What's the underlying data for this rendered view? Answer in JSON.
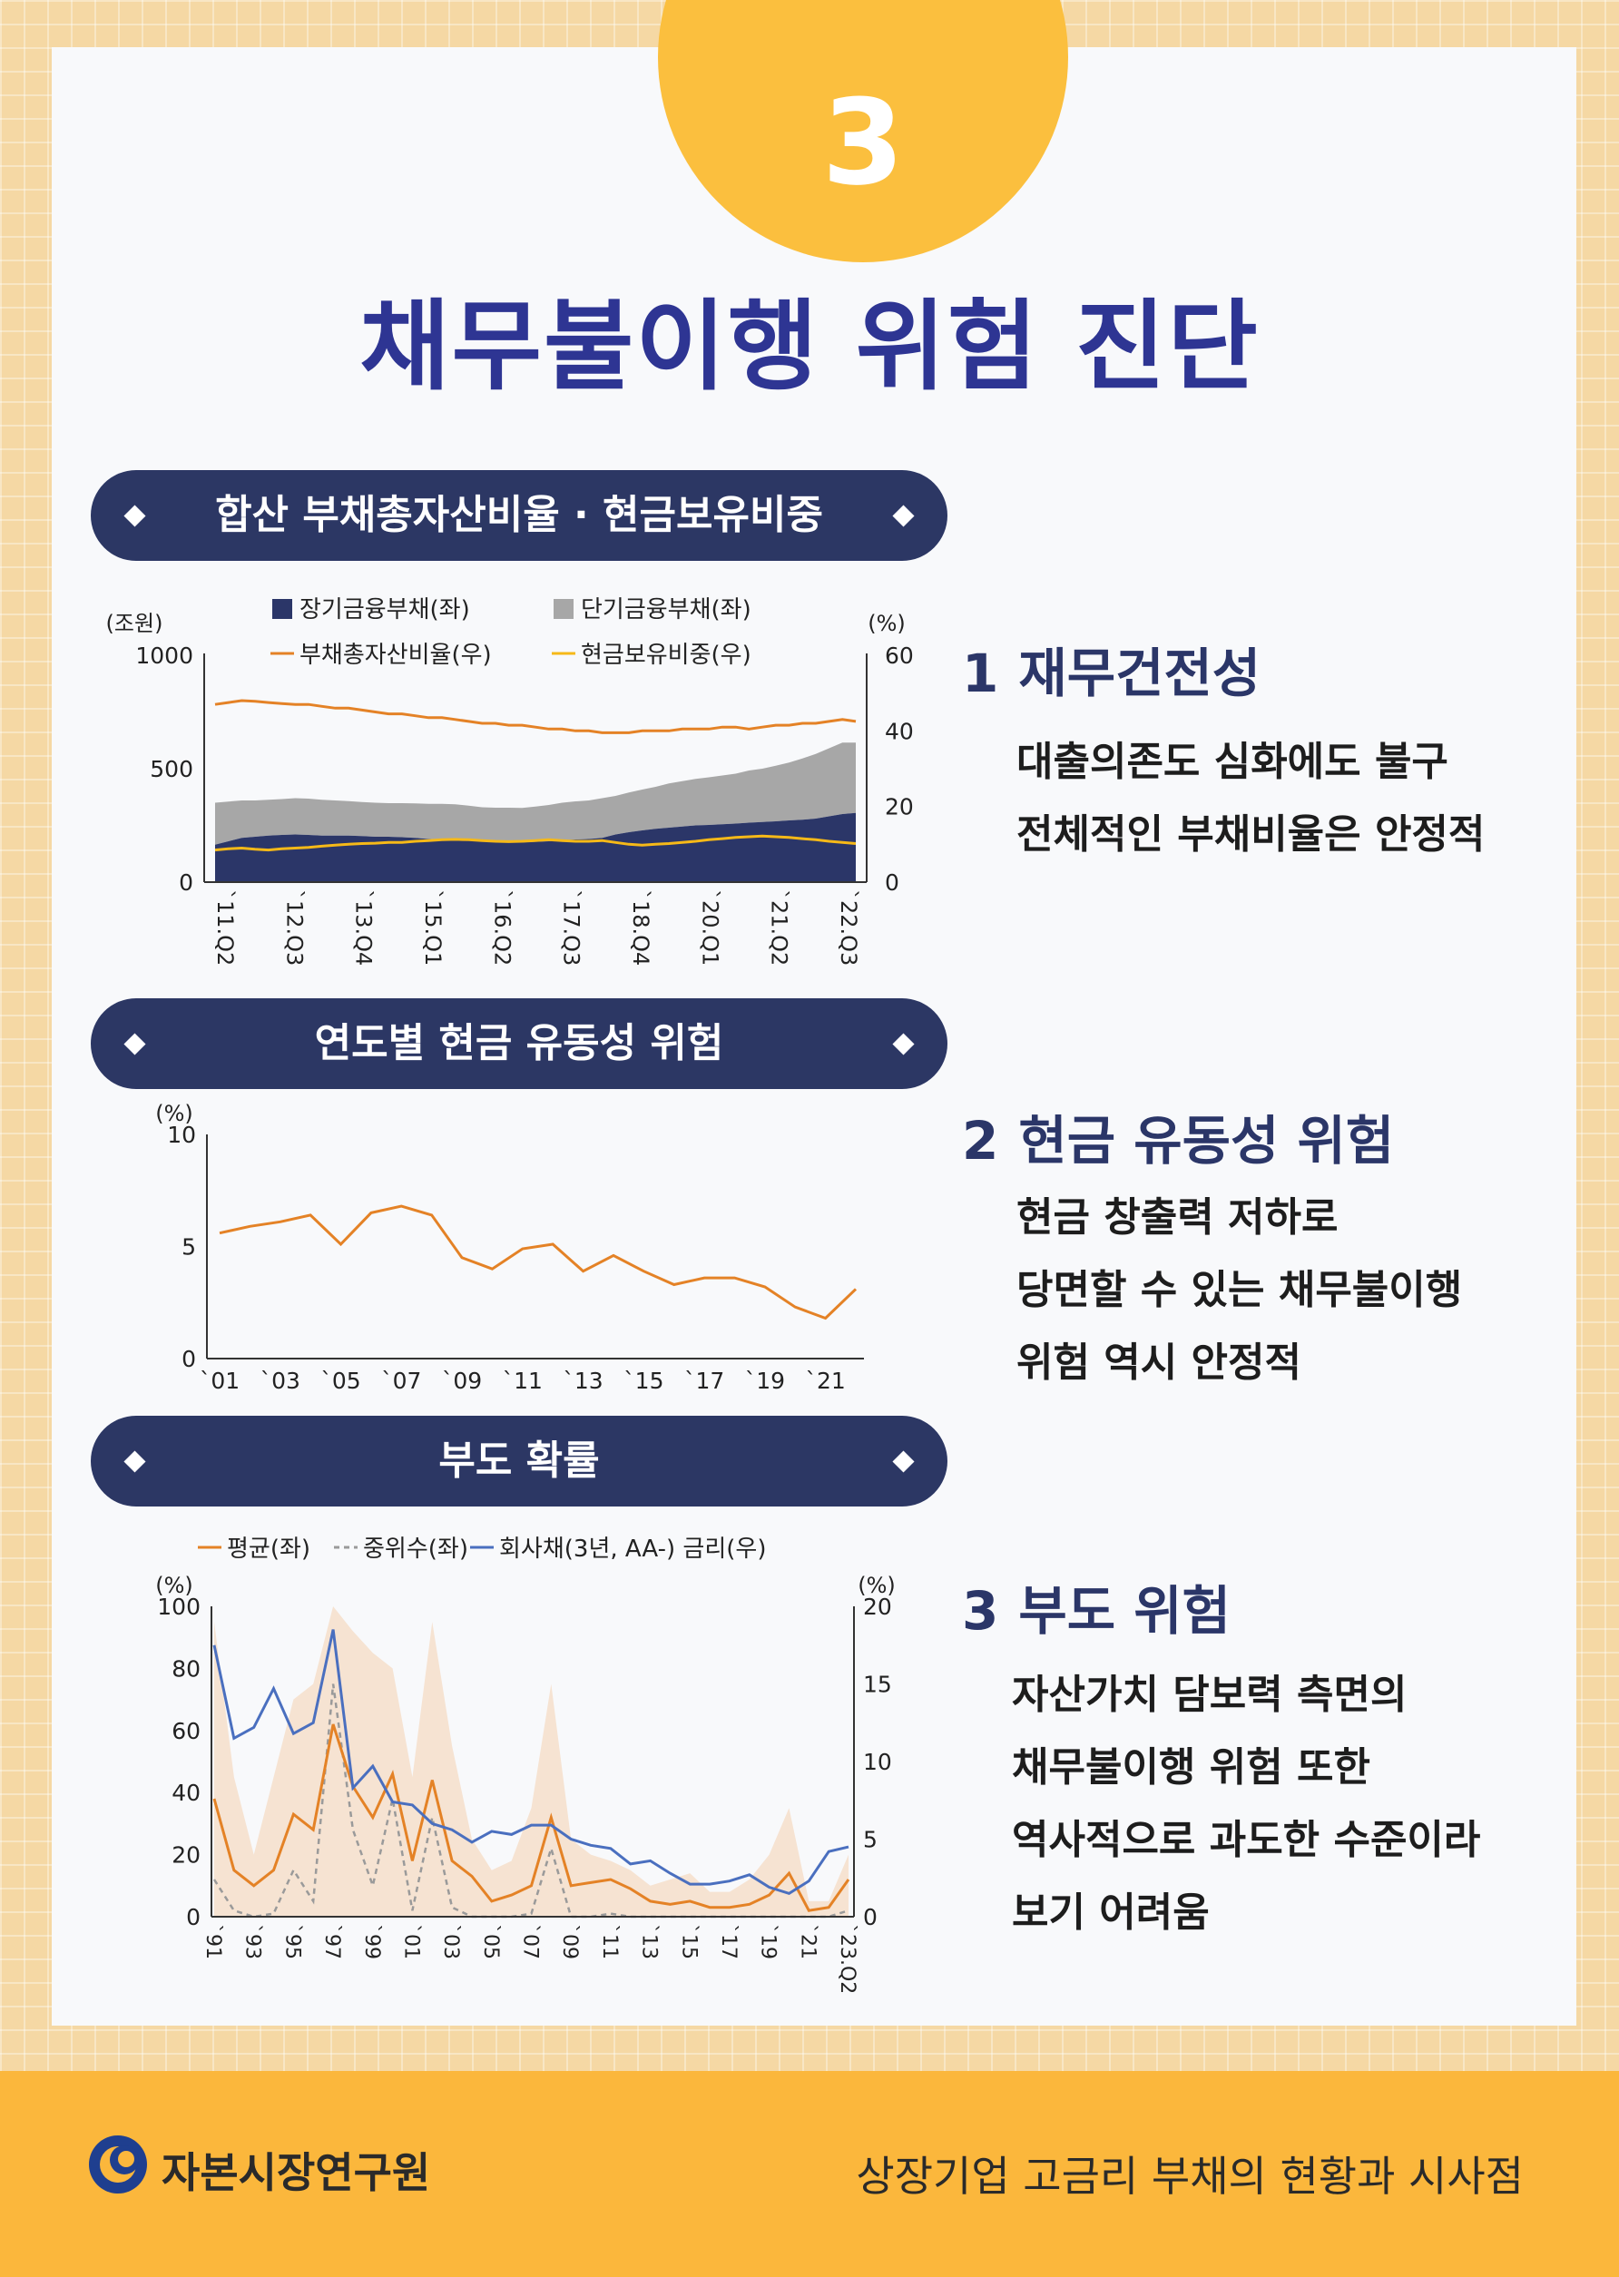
{
  "header": {
    "number": "3",
    "title": "채무불이행 위험 진단"
  },
  "pills": {
    "p1": "합산 부채총자산비율 · 현금보유비중",
    "p2": "연도별 현금 유동성 위험",
    "p3": "부도 확률"
  },
  "sections": [
    {
      "num": "1",
      "title": "재무건전성",
      "lines": [
        "대출의존도 심화에도 불구",
        "전체적인 부채비율은 안정적"
      ]
    },
    {
      "num": "2",
      "title": "현금 유동성 위험",
      "lines": [
        "현금 창출력 저하로",
        "당면할 수 있는 채무불이행",
        "위험 역시 안정적"
      ]
    },
    {
      "num": "3",
      "title": "부도 위험",
      "lines": [
        "자산가치 담보력 측면의",
        "채무불이행 위험 또한",
        "역사적으로 과도한 수준이라",
        "보기 어려움"
      ]
    }
  ],
  "colors": {
    "navy": "#2b3668",
    "gray": "#a7a7a7",
    "orange": "#e48226",
    "yellow": "#f6b918",
    "blue": "#4a6fbf",
    "dash": "#9a9a9a",
    "band": "#f6e3d2"
  },
  "chart_data": [
    {
      "type": "area",
      "title": "합산 부채총자산비율 · 현금보유비중",
      "y_left_unit": "(조원)",
      "y_right_unit": "(%)",
      "y_left_ticks": [
        "1000",
        "500",
        "0"
      ],
      "y_right_ticks": [
        "60",
        "40",
        "20",
        "0"
      ],
      "ylim_left": [
        0,
        1000
      ],
      "ylim_right": [
        0,
        60
      ],
      "x_ticks": [
        "`11.Q2",
        "`12.Q3",
        "`13.Q4",
        "`15.Q1",
        "`16.Q2",
        "`17.Q3",
        "`18.Q4",
        "`20.Q1",
        "`21.Q2",
        "`22.Q3"
      ],
      "legend": [
        "장기금융부채(좌)",
        "단기금융부채(좌)",
        "부채총자산비율(우)",
        "현금보유비중(우)"
      ],
      "series": [
        {
          "name": "장기금융부채(좌)",
          "axis": "left",
          "values": [
            165,
            180,
            195,
            200,
            205,
            208,
            210,
            208,
            205,
            205,
            205,
            203,
            200,
            200,
            198,
            195,
            190,
            190,
            188,
            185,
            180,
            180,
            178,
            175,
            178,
            180,
            185,
            188,
            190,
            195,
            210,
            220,
            228,
            235,
            240,
            245,
            250,
            252,
            255,
            258,
            262,
            265,
            268,
            272,
            275,
            280,
            290,
            300,
            305
          ]
        },
        {
          "name": "단기금융부채(좌)",
          "axis": "left",
          "values": [
            185,
            175,
            165,
            160,
            158,
            158,
            160,
            160,
            158,
            155,
            152,
            150,
            150,
            148,
            150,
            152,
            155,
            155,
            155,
            152,
            150,
            148,
            150,
            152,
            155,
            160,
            165,
            168,
            170,
            175,
            170,
            175,
            180,
            185,
            195,
            200,
            205,
            210,
            215,
            220,
            230,
            235,
            245,
            255,
            270,
            285,
            300,
            315,
            310
          ]
        },
        {
          "name": "부채총자산비율(우)",
          "axis": "right",
          "values": [
            47,
            47.5,
            48,
            47.8,
            47.5,
            47.2,
            47,
            47,
            46.5,
            46,
            46,
            45.5,
            45,
            44.5,
            44.5,
            44,
            43.5,
            43.5,
            43,
            42.5,
            42,
            42,
            41.5,
            41.5,
            41,
            40.5,
            40.5,
            40,
            40,
            39.5,
            39.5,
            39.5,
            40,
            40,
            40,
            40.5,
            40.5,
            40.5,
            41,
            41,
            40.5,
            41,
            41.5,
            41.5,
            42,
            42,
            42.5,
            43,
            42.5
          ]
        },
        {
          "name": "현금보유비중(우)",
          "axis": "right",
          "values": [
            8.5,
            8.8,
            9,
            8.7,
            8.5,
            8.8,
            9,
            9.2,
            9.5,
            9.8,
            10,
            10.2,
            10.3,
            10.5,
            10.5,
            10.8,
            11,
            11.2,
            11.3,
            11.2,
            11,
            10.8,
            10.7,
            10.8,
            11,
            11.2,
            11,
            10.8,
            10.8,
            11,
            10.5,
            10,
            9.8,
            10,
            10.2,
            10.5,
            10.8,
            11.2,
            11.5,
            11.8,
            12,
            12.2,
            12,
            11.8,
            11.5,
            11.2,
            10.8,
            10.5,
            10.2
          ]
        }
      ]
    },
    {
      "type": "line",
      "title": "연도별 현금 유동성 위험",
      "y_unit": "(%)",
      "y_ticks": [
        "10",
        "5",
        "0"
      ],
      "ylim": [
        0,
        10
      ],
      "x_ticks": [
        "`01",
        "`03",
        "`05",
        "`07",
        "`09",
        "`11",
        "`13",
        "`15",
        "`17",
        "`19",
        "`21"
      ],
      "series": [
        {
          "name": "현금 유동성 위험",
          "x": [
            2001,
            2002,
            2003,
            2004,
            2005,
            2006,
            2007,
            2008,
            2009,
            2010,
            2011,
            2012,
            2013,
            2014,
            2015,
            2016,
            2017,
            2018,
            2019,
            2020,
            2021,
            2022
          ],
          "values": [
            5.6,
            5.9,
            6.1,
            6.4,
            5.1,
            6.5,
            6.8,
            6.4,
            4.5,
            4.0,
            4.9,
            5.1,
            3.9,
            4.6,
            3.9,
            3.3,
            3.6,
            3.6,
            3.2,
            2.3,
            1.8,
            3.1
          ]
        }
      ]
    },
    {
      "type": "line",
      "title": "부도 확률",
      "y_left_unit": "(%)",
      "y_right_unit": "(%)",
      "y_left_ticks": [
        "100",
        "80",
        "60",
        "40",
        "20",
        "0"
      ],
      "y_right_ticks": [
        "20",
        "15",
        "10",
        "5",
        "0"
      ],
      "ylim_left": [
        0,
        100
      ],
      "ylim_right": [
        0,
        20
      ],
      "x_ticks": [
        "`91",
        "`93",
        "`95",
        "`97",
        "`99",
        "`01",
        "`03",
        "`05",
        "`07",
        "`09",
        "`11",
        "`13",
        "`15",
        "`17",
        "`19",
        "`21",
        "`23.Q2"
      ],
      "legend": [
        "평균(좌)",
        "중위수(좌)",
        "회사채(3년, AA-) 금리(우)"
      ],
      "x": [
        1991,
        1992,
        1993,
        1994,
        1995,
        1996,
        1997,
        1998,
        1999,
        2000,
        2001,
        2002,
        2003,
        2004,
        2005,
        2006,
        2007,
        2008,
        2009,
        2010,
        2011,
        2012,
        2013,
        2014,
        2015,
        2016,
        2017,
        2018,
        2019,
        2020,
        2021,
        2022,
        2023
      ],
      "series": [
        {
          "name": "평균(좌)",
          "axis": "left",
          "values": [
            38,
            15,
            10,
            15,
            33,
            28,
            62,
            42,
            32,
            46,
            18,
            44,
            18,
            13,
            5,
            7,
            10,
            32,
            10,
            11,
            12,
            9,
            5,
            4,
            5,
            3,
            3,
            4,
            7,
            14,
            2,
            3,
            12
          ]
        },
        {
          "name": "중위수(좌)",
          "axis": "left",
          "values": [
            12,
            2,
            0,
            1,
            15,
            5,
            75,
            28,
            10,
            38,
            2,
            32,
            3,
            0,
            0,
            0,
            1,
            22,
            0,
            0,
            1,
            0,
            0,
            0,
            0,
            0,
            0,
            0,
            0,
            0,
            0,
            0,
            2
          ]
        },
        {
          "name": "회사채(3년, AA-) 금리(우)",
          "axis": "right",
          "values": [
            17.5,
            11.5,
            12.2,
            14.7,
            11.8,
            12.5,
            18.5,
            8.3,
            9.7,
            7.4,
            7.2,
            6.0,
            5.6,
            4.8,
            5.5,
            5.3,
            5.9,
            5.9,
            5.0,
            4.6,
            4.4,
            3.4,
            3.6,
            2.8,
            2.1,
            2.1,
            2.3,
            2.7,
            1.9,
            1.5,
            2.3,
            4.2,
            4.5
          ]
        },
        {
          "name": "band_upper",
          "axis": "left",
          "values": [
            95,
            45,
            20,
            45,
            70,
            75,
            100,
            92,
            85,
            80,
            45,
            95,
            55,
            25,
            15,
            18,
            35,
            75,
            25,
            20,
            18,
            15,
            10,
            12,
            14,
            8,
            8,
            12,
            20,
            35,
            5,
            5,
            20
          ]
        }
      ]
    }
  ],
  "footer": {
    "org": "자본시장연구원",
    "report": "상장기업 고금리 부채의 현황과 시사점"
  }
}
